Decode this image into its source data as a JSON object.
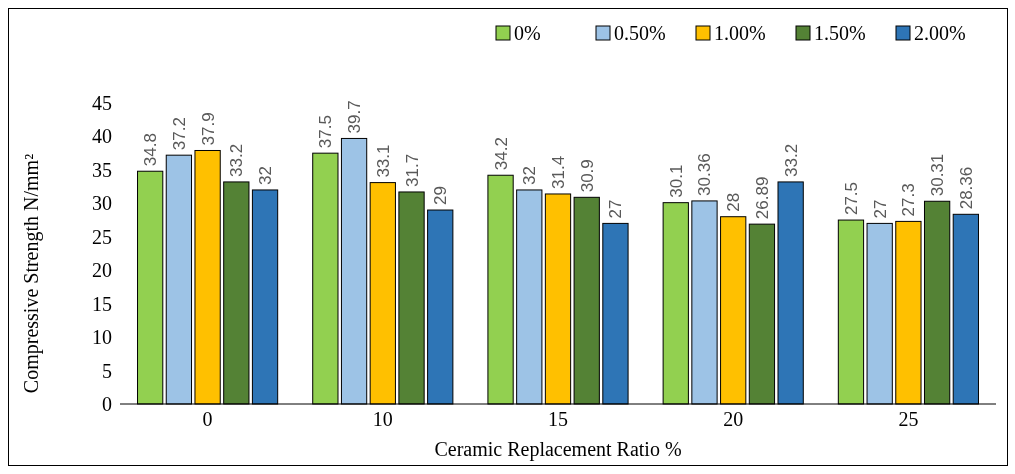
{
  "chart_data": {
    "type": "bar",
    "xlabel": "Ceramic Replacement Ratio %",
    "ylabel": "Compressive Strength N/mm²",
    "categories": [
      "0",
      "10",
      "15",
      "20",
      "25"
    ],
    "series": [
      {
        "name": "0%",
        "color": "#92d050",
        "values": [
          34.8,
          37.5,
          34.2,
          30.1,
          27.5
        ]
      },
      {
        "name": "0.50%",
        "color": "#9dc3e6",
        "values": [
          37.2,
          39.7,
          32,
          30.36,
          27
        ]
      },
      {
        "name": "1.00%",
        "color": "#ffc000",
        "values": [
          37.9,
          33.1,
          31.4,
          28,
          27.3
        ]
      },
      {
        "name": "1.50%",
        "color": "#548235",
        "values": [
          33.2,
          31.7,
          30.9,
          26.89,
          30.31
        ]
      },
      {
        "name": "2.00%",
        "color": "#2e75b6",
        "values": [
          32,
          29,
          27,
          33.2,
          28.36
        ]
      }
    ],
    "ylim": [
      0,
      45
    ],
    "yticks": [
      0,
      5,
      10,
      15,
      20,
      25,
      30,
      35,
      40,
      45
    ],
    "grid": false,
    "legend": "top right",
    "data_labels": true
  }
}
